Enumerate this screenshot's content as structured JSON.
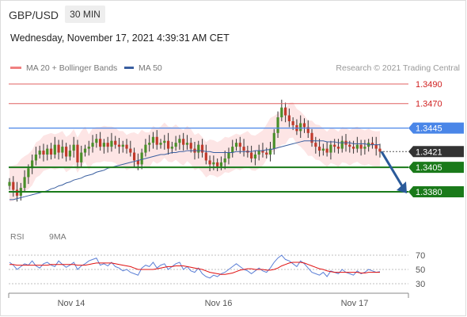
{
  "header": {
    "symbol": "GBP/USD",
    "timeframe": "30 MIN"
  },
  "datetime": "Wednesday, November 17, 2021 4:39:31 AM CET",
  "legend": {
    "items": [
      {
        "label": "MA 20 + Bollinger Bands",
        "color": "#f08080"
      },
      {
        "label": "MA 50",
        "color": "#3a5fa0"
      }
    ],
    "rsi_items": [
      {
        "label": "RSI",
        "color": "#5b7fd6"
      },
      {
        "label": "9MA",
        "color": "#e01010"
      }
    ]
  },
  "research": "Research © 2021 Trading Central",
  "colors": {
    "up": "#4a8f2a",
    "down": "#c0392b",
    "resistance": "#e06060",
    "pivot": "#4a86e8",
    "support": "#1a7a1a",
    "current": "#333333",
    "bb_fill": "#fde0e0"
  },
  "chart_data": [
    {
      "type": "line",
      "x_ticks": [
        "Nov 14",
        "Nov 16",
        "Nov 17"
      ],
      "levels": [
        {
          "value": 1.349,
          "label": "1.3490",
          "kind": "resistance"
        },
        {
          "value": 1.347,
          "label": "1.3470",
          "kind": "resistance"
        },
        {
          "value": 1.3445,
          "label": "1.3445",
          "kind": "pivot"
        },
        {
          "value": 1.3421,
          "label": "1.3421",
          "kind": "current"
        },
        {
          "value": 1.3405,
          "label": "1.3405",
          "kind": "support"
        },
        {
          "value": 1.338,
          "label": "1.3380",
          "kind": "support"
        }
      ],
      "ylim": [
        1.335,
        1.35
      ],
      "close": [
        1.339,
        1.3382,
        1.3376,
        1.3384,
        1.3395,
        1.3404,
        1.3412,
        1.3418,
        1.3422,
        1.3418,
        1.3424,
        1.3418,
        1.3428,
        1.342,
        1.3426,
        1.3416,
        1.3422,
        1.3428,
        1.341,
        1.342,
        1.3424,
        1.3426,
        1.343,
        1.3434,
        1.3426,
        1.343,
        1.3426,
        1.3432,
        1.3428,
        1.3426,
        1.3428,
        1.3424,
        1.342,
        1.3412,
        1.3408,
        1.342,
        1.3428,
        1.343,
        1.3436,
        1.3428,
        1.343,
        1.3432,
        1.3424,
        1.3426,
        1.343,
        1.3434,
        1.3428,
        1.343,
        1.3424,
        1.342,
        1.3428,
        1.342,
        1.3412,
        1.3408,
        1.341,
        1.3406,
        1.341,
        1.3414,
        1.342,
        1.3426,
        1.343,
        1.3426,
        1.3422,
        1.342,
        1.3414,
        1.3418,
        1.3422,
        1.342,
        1.3418,
        1.3424,
        1.344,
        1.3456,
        1.3466,
        1.3458,
        1.3452,
        1.3448,
        1.3442,
        1.345,
        1.3446,
        1.344,
        1.343,
        1.3426,
        1.3422,
        1.3424,
        1.342,
        1.3428,
        1.3426,
        1.3424,
        1.3432,
        1.3428,
        1.3426,
        1.3424,
        1.3428,
        1.3424,
        1.3426,
        1.343,
        1.3428,
        1.3424,
        1.3421
      ],
      "ma50": [
        1.3372,
        1.3372,
        1.3373,
        1.3374,
        1.3375,
        1.3376,
        1.3377,
        1.3378,
        1.3379,
        1.338,
        1.3381,
        1.3383,
        1.3384,
        1.3386,
        1.3387,
        1.3389,
        1.339,
        1.3392,
        1.3393,
        1.3394,
        1.3396,
        1.3397,
        1.3398,
        1.34,
        1.3401,
        1.3402,
        1.3404,
        1.3405,
        1.3406,
        1.3407,
        1.3408,
        1.3409,
        1.341,
        1.3411,
        1.3412,
        1.3413,
        1.3414,
        1.3415,
        1.3416,
        1.3417,
        1.3418,
        1.3418,
        1.3419,
        1.342,
        1.342,
        1.3421,
        1.3421,
        1.3422,
        1.3422,
        1.3422,
        1.3422,
        1.3422,
        1.3421,
        1.3421,
        1.342,
        1.342,
        1.342,
        1.342,
        1.342,
        1.342,
        1.3421,
        1.3421,
        1.3421,
        1.3421,
        1.3421,
        1.3422,
        1.3422,
        1.3422,
        1.3423,
        1.3423,
        1.3424,
        1.3425,
        1.3426,
        1.3427,
        1.3428,
        1.3429,
        1.343,
        1.3431,
        1.3432,
        1.3432,
        1.3432,
        1.3432,
        1.3432,
        1.3432,
        1.3431,
        1.3431,
        1.3431,
        1.343,
        1.343,
        1.343,
        1.343,
        1.3429,
        1.3429,
        1.3429,
        1.3429,
        1.3428,
        1.3428,
        1.3428,
        1.3428
      ],
      "forecast": [
        1.3421,
        1.338
      ]
    },
    {
      "type": "line",
      "y_ticks": [
        70,
        50,
        30
      ],
      "ylim": [
        20,
        80
      ],
      "rsi": [
        60,
        56,
        50,
        54,
        58,
        56,
        62,
        55,
        52,
        58,
        60,
        56,
        54,
        62,
        57,
        53,
        56,
        60,
        50,
        55,
        58,
        62,
        64,
        66,
        56,
        58,
        55,
        60,
        54,
        52,
        48,
        50,
        46,
        44,
        42,
        52,
        56,
        54,
        60,
        52,
        56,
        58,
        50,
        54,
        58,
        60,
        50,
        54,
        48,
        46,
        52,
        44,
        40,
        38,
        42,
        40,
        44,
        46,
        50,
        54,
        58,
        54,
        50,
        48,
        44,
        48,
        52,
        48,
        46,
        52,
        60,
        66,
        70,
        64,
        62,
        58,
        54,
        62,
        58,
        52,
        46,
        44,
        42,
        46,
        40,
        48,
        46,
        44,
        50,
        46,
        44,
        42,
        48,
        44,
        46,
        50,
        48,
        46,
        47
      ],
      "ma9": [
        57,
        57,
        56,
        56,
        56,
        56,
        56,
        56,
        56,
        56,
        56,
        57,
        57,
        57,
        57,
        57,
        57,
        57,
        56,
        56,
        56,
        57,
        58,
        59,
        59,
        59,
        59,
        59,
        58,
        57,
        56,
        55,
        54,
        52,
        50,
        50,
        50,
        50,
        50,
        51,
        52,
        53,
        54,
        54,
        55,
        55,
        55,
        54,
        53,
        52,
        51,
        50,
        48,
        46,
        45,
        44,
        43,
        43,
        44,
        45,
        47,
        49,
        50,
        51,
        51,
        50,
        50,
        50,
        49,
        49,
        50,
        52,
        55,
        57,
        59,
        60,
        60,
        60,
        59,
        57,
        55,
        53,
        51,
        50,
        48,
        47,
        46,
        46,
        46,
        46,
        46,
        46,
        46,
        45,
        45,
        46,
        46,
        46,
        46
      ]
    }
  ]
}
